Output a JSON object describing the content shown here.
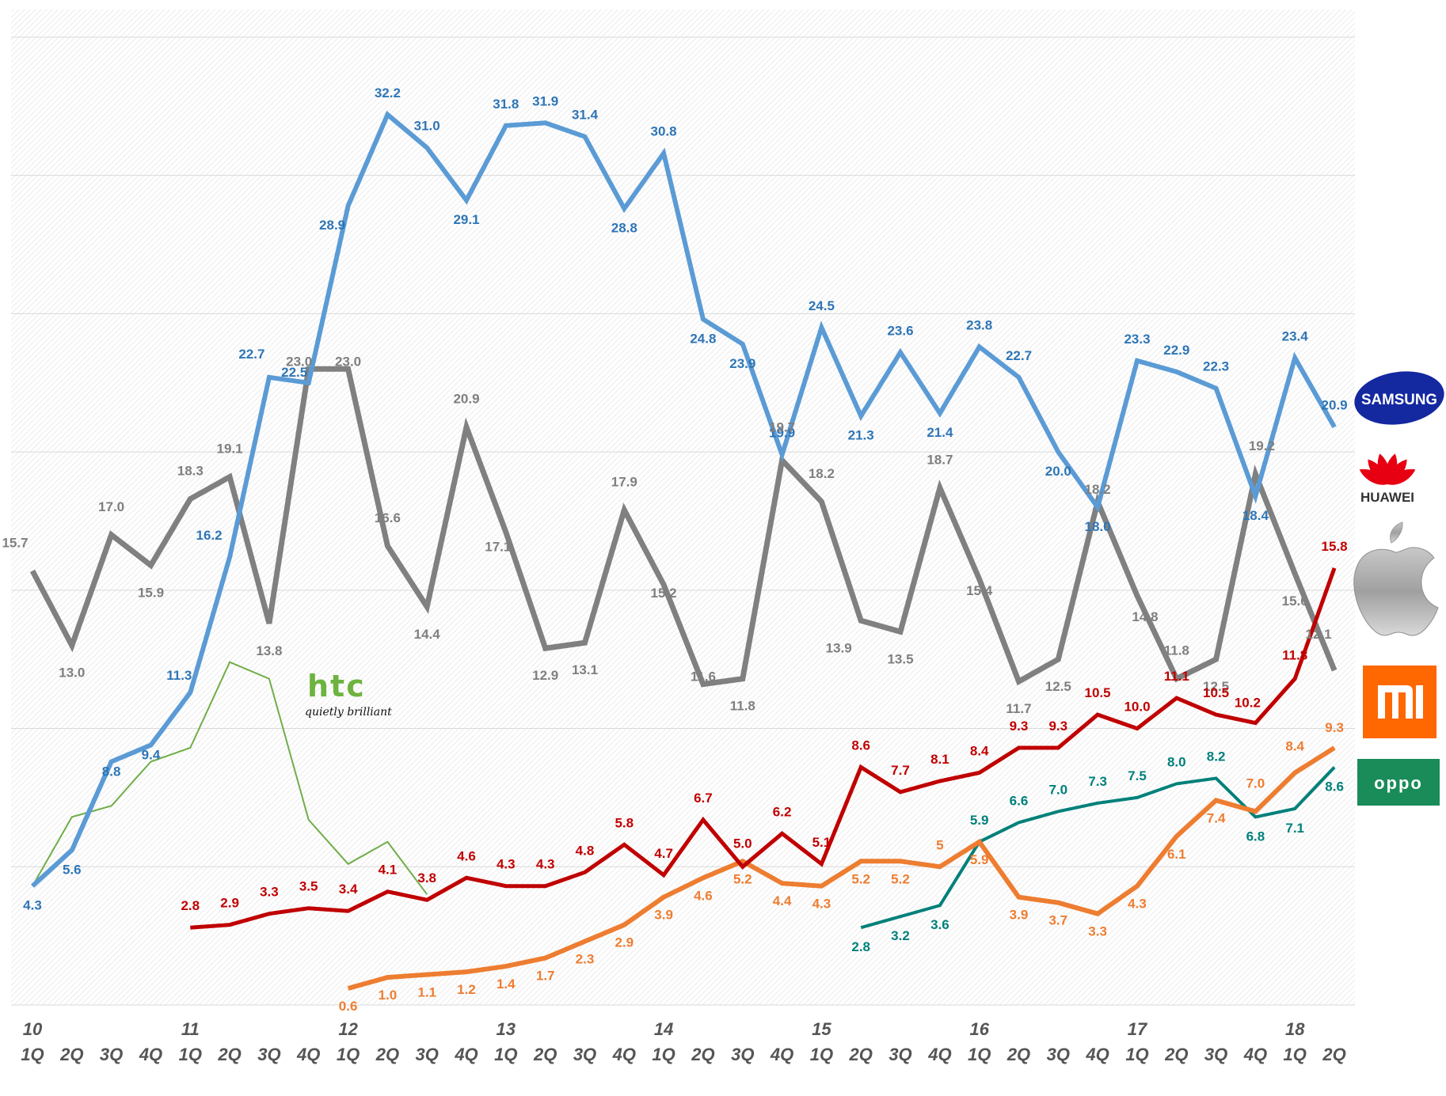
{
  "chart_data": {
    "type": "line",
    "title": "",
    "xlabel": "",
    "ylabel": "",
    "ylim": [
      0,
      36
    ],
    "grid": true,
    "quarters": [
      "1Q",
      "2Q",
      "3Q",
      "4Q",
      "1Q",
      "2Q",
      "3Q",
      "4Q",
      "1Q",
      "2Q",
      "3Q",
      "4Q",
      "1Q",
      "2Q",
      "3Q",
      "4Q",
      "1Q",
      "2Q",
      "3Q",
      "4Q",
      "1Q",
      "2Q",
      "3Q",
      "4Q",
      "1Q",
      "2Q",
      "3Q",
      "4Q",
      "1Q",
      "2Q",
      "3Q",
      "4Q",
      "1Q",
      "2Q"
    ],
    "years": [
      {
        "label": "10",
        "index": 0
      },
      {
        "label": "11",
        "index": 4
      },
      {
        "label": "12",
        "index": 8
      },
      {
        "label": "13",
        "index": 12
      },
      {
        "label": "14",
        "index": 16
      },
      {
        "label": "15",
        "index": 20
      },
      {
        "label": "16",
        "index": 24
      },
      {
        "label": "17",
        "index": 28
      },
      {
        "label": "18",
        "index": 32
      }
    ],
    "series": [
      {
        "name": "Samsung",
        "color": "#5B9BD5",
        "label_color": "#2E75B6",
        "width": 6,
        "values": [
          4.3,
          5.6,
          8.8,
          9.4,
          11.3,
          16.2,
          22.7,
          22.5,
          28.9,
          32.2,
          31.0,
          29.1,
          31.8,
          31.9,
          31.4,
          28.8,
          30.8,
          24.8,
          23.9,
          19.9,
          24.5,
          21.3,
          23.6,
          21.4,
          23.8,
          22.7,
          20.0,
          18.0,
          23.3,
          22.9,
          22.3,
          18.4,
          23.4,
          20.9
        ],
        "labels": [
          "4.3",
          "5.6",
          "8.8",
          "9.4",
          "11.3",
          "16.2",
          "22.7",
          "22.5",
          "28.9",
          "32.2",
          "31.0",
          "29.1",
          "31.8",
          "31.9",
          "31.4",
          "28.8",
          "30.8",
          "24.8",
          "23.9",
          "19.9",
          "24.5",
          "21.3",
          "23.6",
          "21.4",
          "23.8",
          "22.7",
          "20.0",
          "18.0",
          "23.3",
          "22.9",
          "22.3",
          "18.4",
          "23.4",
          "20.9"
        ]
      },
      {
        "name": "Apple",
        "color": "#808080",
        "label_color": "#7F7F7F",
        "width": 7,
        "values": [
          15.7,
          13.0,
          17.0,
          15.9,
          18.3,
          19.1,
          13.8,
          23.0,
          23.0,
          16.6,
          14.4,
          20.9,
          17.1,
          12.9,
          13.1,
          17.9,
          15.2,
          11.6,
          11.8,
          19.7,
          18.2,
          13.9,
          13.5,
          18.7,
          15.4,
          11.7,
          12.5,
          18.2,
          14.8,
          11.8,
          12.5,
          19.2,
          15.6,
          12.1
        ],
        "labels": [
          "15.7",
          "13.0",
          "17.0",
          "15.9",
          "18.3",
          "19.1",
          "13.8",
          "23.0",
          "23.0",
          "16.6",
          "14.4",
          "20.9",
          "17.1",
          "12.9",
          "13.1",
          "17.9",
          "15.2",
          "11.6",
          "11.8",
          "19.7",
          "18.2",
          "13.9",
          "13.5",
          "18.7",
          "15.4",
          "11.7",
          "12.5",
          "18.2",
          "14.8",
          "11.8",
          "12.5",
          "19.2",
          "15.6",
          "12.1"
        ]
      },
      {
        "name": "Huawei",
        "color": "#C00000",
        "label_color": "#C00000",
        "width": 5,
        "values": [
          null,
          null,
          null,
          null,
          2.8,
          2.9,
          3.3,
          3.5,
          3.4,
          4.1,
          3.8,
          4.6,
          4.3,
          4.3,
          4.8,
          5.8,
          4.7,
          6.7,
          5.0,
          6.2,
          5.1,
          8.6,
          7.7,
          8.1,
          8.4,
          9.3,
          9.3,
          10.5,
          10.0,
          11.1,
          10.5,
          10.2,
          11.8,
          15.8
        ],
        "labels": [
          null,
          null,
          null,
          null,
          "2.8",
          "2.9",
          "3.3",
          "3.5",
          "3.4",
          "4.1",
          "3.8",
          "4.6",
          "4.3",
          "4.3",
          "4.8",
          "5.8",
          "4.7",
          "6.7",
          "5.0",
          "6.2",
          "5.1",
          "8.6",
          "7.7",
          "8.1",
          "8.4",
          "9.3",
          "9.3",
          "10.5",
          "10.0",
          "11.1",
          "10.5",
          "10.2",
          "11.8",
          "15.8"
        ]
      },
      {
        "name": "Xiaomi",
        "color": "#ED7D31",
        "label_color": "#ED7D31",
        "width": 6,
        "values": [
          null,
          null,
          null,
          null,
          null,
          null,
          null,
          null,
          0.6,
          1.0,
          1.1,
          1.2,
          1.4,
          1.7,
          2.3,
          2.9,
          3.9,
          4.6,
          5.2,
          4.4,
          4.3,
          5.2,
          5.2,
          5.0,
          5.9,
          3.9,
          3.7,
          3.3,
          4.3,
          6.1,
          7.4,
          7.0,
          8.4,
          9.3
        ],
        "labels": [
          null,
          null,
          null,
          null,
          null,
          null,
          null,
          null,
          "0.6",
          "1.0",
          "1.1",
          "1.2",
          "1.4",
          "1.7",
          "2.3",
          "2.9",
          "3.9",
          "4.6",
          "5.2",
          "4.4",
          "4.3",
          "5.2",
          "5.2",
          "5",
          "5.9",
          "3.9",
          "3.7",
          "3.3",
          "4.3",
          "6.1",
          "7.4",
          "7.0",
          "8.4",
          "9.3"
        ]
      },
      {
        "name": "Oppo",
        "color": "#00807A",
        "label_color": "#00807A",
        "width": 4,
        "values": [
          null,
          null,
          null,
          null,
          null,
          null,
          null,
          null,
          null,
          null,
          null,
          null,
          null,
          null,
          null,
          null,
          null,
          null,
          null,
          null,
          null,
          2.8,
          3.2,
          3.6,
          5.9,
          6.6,
          7.0,
          7.3,
          7.5,
          8.0,
          8.2,
          6.8,
          7.1,
          8.6
        ],
        "labels": [
          null,
          null,
          null,
          null,
          null,
          null,
          null,
          null,
          null,
          null,
          null,
          null,
          null,
          null,
          null,
          null,
          null,
          null,
          null,
          null,
          null,
          "2.8",
          "3.2",
          "3.6",
          "5.9",
          "6.6",
          "7.0",
          "7.3",
          "7.5",
          "8.0",
          "8.2",
          "6.8",
          "7.1",
          "8.6"
        ]
      },
      {
        "name": "HTC",
        "color": "#70AD47",
        "label_color": "#70AD47",
        "width": 2,
        "values": [
          4.3,
          6.8,
          7.2,
          8.8,
          9.3,
          12.4,
          11.8,
          6.7,
          5.1,
          5.9,
          4.0,
          null,
          null,
          null,
          null,
          null,
          null,
          null,
          null,
          null,
          null,
          null,
          null,
          null,
          null,
          null,
          null,
          null,
          null,
          null,
          null,
          null,
          null,
          null
        ],
        "labels": []
      }
    ]
  },
  "logos": {
    "htc": {
      "name": "htc",
      "tagline": "quietly brilliant"
    },
    "samsung": "SAMSUNG",
    "huawei": "HUAWEI",
    "apple": "Apple",
    "mi": "mi",
    "oppo": "oppo"
  }
}
